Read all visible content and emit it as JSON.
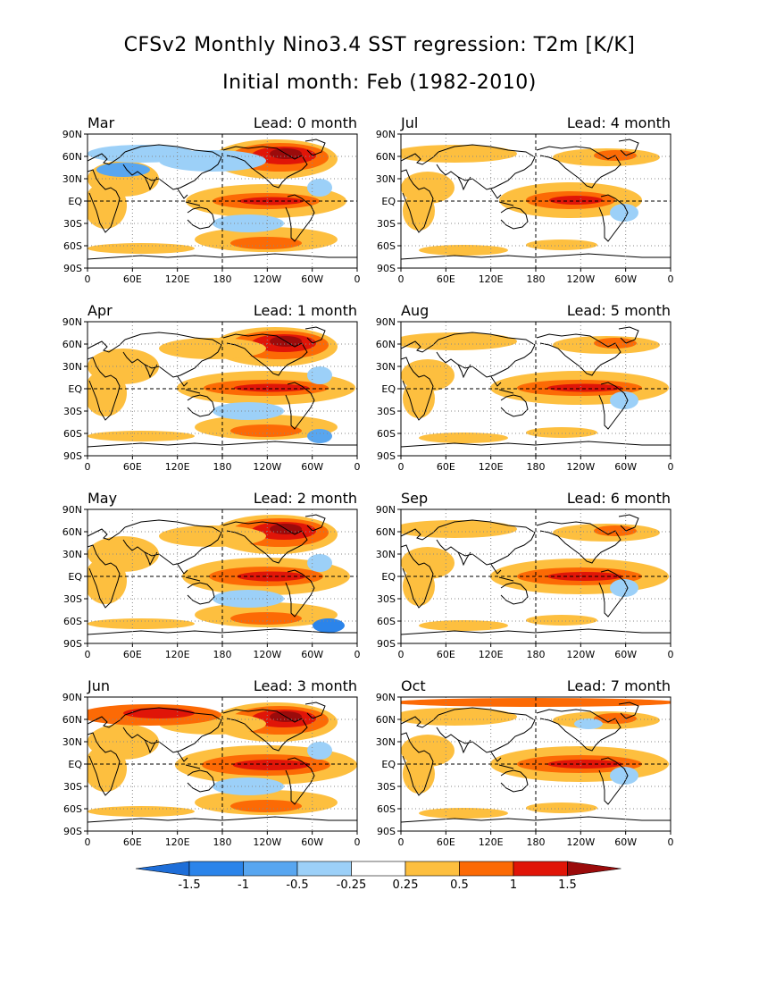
{
  "title_line1": "CFSv2 Monthly Nino3.4 SST regression: T2m [K/K]",
  "title_line2": "Initial month: Feb (1982-2010)",
  "lat_labels": [
    "90N",
    "60N",
    "30N",
    "EQ",
    "30S",
    "60S",
    "90S"
  ],
  "lon_labels": [
    "0",
    "60E",
    "120E",
    "180",
    "120W",
    "60W",
    "0"
  ],
  "panels": [
    {
      "month": "Mar",
      "lead": "Lead: 0 month"
    },
    {
      "month": "Jul",
      "lead": "Lead: 4 month"
    },
    {
      "month": "Apr",
      "lead": "Lead: 1 month"
    },
    {
      "month": "Aug",
      "lead": "Lead: 5 month"
    },
    {
      "month": "May",
      "lead": "Lead: 2 month"
    },
    {
      "month": "Sep",
      "lead": "Lead: 6 month"
    },
    {
      "month": "Jun",
      "lead": "Lead: 3 month"
    },
    {
      "month": "Oct",
      "lead": "Lead: 7 month"
    }
  ],
  "colorbar": {
    "labels": [
      "-1.5",
      "-1",
      "-0.5",
      "-0.25",
      "0.25",
      "0.5",
      "1",
      "1.5"
    ],
    "colors": [
      "#1e6ed8",
      "#2b84ea",
      "#58a6f0",
      "#9cd0f8",
      "#ffffff",
      "#fdbf3f",
      "#fc6a05",
      "#e01508",
      "#9b0b0b"
    ]
  },
  "colors": {
    "warm_light": "#fdbf3f",
    "warm_mid": "#fc6a05",
    "warm_strong": "#e01508",
    "warm_extreme": "#9b0b0b",
    "cool_light": "#9cd0f8",
    "cool_mid": "#58a6f0",
    "cool_strong": "#2b84ea"
  }
}
